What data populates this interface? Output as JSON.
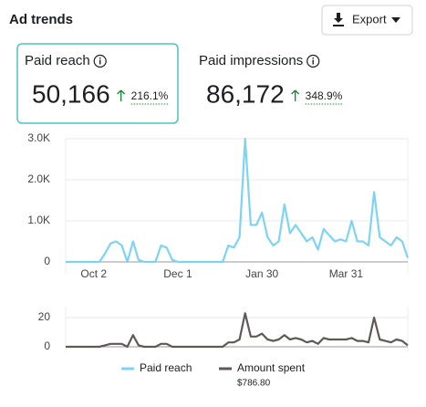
{
  "header": {
    "title": "Ad trends",
    "export": "Export"
  },
  "metrics": [
    {
      "label": "Paid reach",
      "value": "50,166",
      "change": "216.1%"
    },
    {
      "label": "Paid impressions",
      "value": "86,172",
      "change": "348.9%"
    }
  ],
  "chart_data": [
    {
      "type": "line",
      "categories": [
        null,
        null,
        null,
        null,
        null,
        "Oct 2",
        null,
        null,
        null,
        null,
        null,
        null,
        null,
        null,
        null,
        null,
        null,
        null,
        null,
        null,
        "Dec 1",
        null,
        null,
        null,
        null,
        null,
        null,
        null,
        null,
        null,
        null,
        null,
        null,
        null,
        null,
        "Jan 30",
        null,
        null,
        null,
        null,
        null,
        null,
        null,
        null,
        null,
        null,
        null,
        null,
        null,
        null,
        "Mar 31",
        null,
        null,
        null,
        null,
        null,
        null,
        null,
        null,
        null,
        null,
        null
      ],
      "series": [
        {
          "name": "Paid reach",
          "color": "#7dd3f5",
          "values": [
            0,
            0,
            0,
            0,
            0,
            0,
            0,
            200,
            450,
            500,
            400,
            0,
            500,
            50,
            0,
            0,
            0,
            400,
            350,
            50,
            0,
            0,
            0,
            0,
            0,
            0,
            0,
            0,
            0,
            400,
            350,
            600,
            3000,
            900,
            900,
            1200,
            600,
            400,
            500,
            1400,
            700,
            900,
            700,
            500,
            600,
            300,
            800,
            650,
            500,
            550,
            500,
            1000,
            500,
            500,
            400,
            1700,
            600,
            500,
            400,
            600,
            500,
            100
          ]
        }
      ],
      "ylim": [
        0,
        3000
      ],
      "yticks": [
        0,
        {
          "value": 1000,
          "label": "1.0K"
        },
        {
          "value": 2000,
          "label": "2.0K"
        },
        {
          "value": 3000,
          "label": "3.0K"
        }
      ],
      "grid": true
    },
    {
      "type": "line",
      "series": [
        {
          "name": "Amount spent",
          "color": "#5f5857",
          "values": [
            0,
            0,
            0,
            0,
            0,
            0,
            0,
            1,
            2,
            2,
            2,
            0,
            8,
            1,
            0,
            0,
            0,
            2,
            2,
            0,
            0,
            0,
            0,
            0,
            0,
            0,
            0,
            0,
            0,
            3,
            3,
            5,
            23,
            7,
            7,
            9,
            5,
            4,
            5,
            8,
            5,
            6,
            5,
            3,
            4,
            2,
            6,
            5,
            5,
            5,
            5,
            6,
            4,
            4,
            3,
            20,
            5,
            4,
            3,
            5,
            4,
            1
          ]
        }
      ],
      "annotation": "$786.80",
      "ylim": [
        0,
        25
      ],
      "yticks": [
        0,
        20
      ],
      "grid": true
    }
  ]
}
